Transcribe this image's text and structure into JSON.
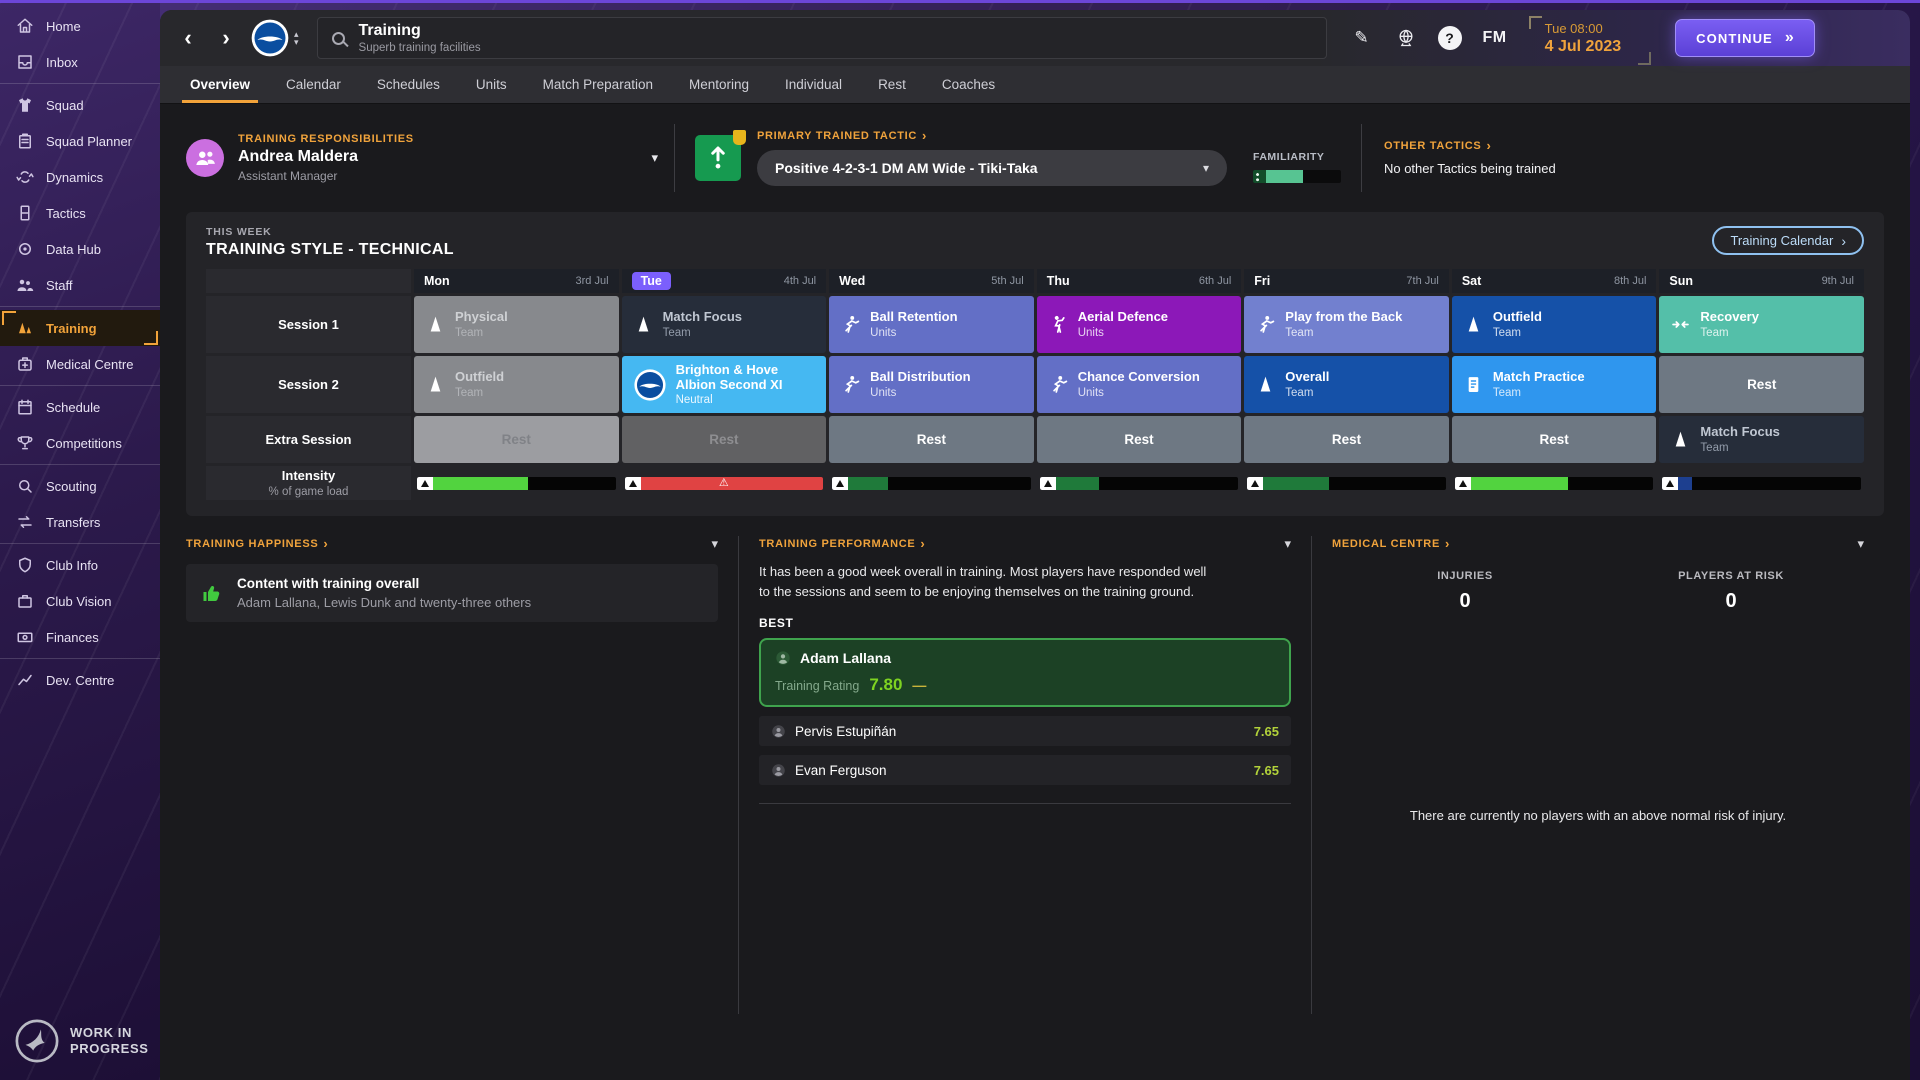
{
  "icons": {
    "back": "‹",
    "forward": "›",
    "link_arrow": "›",
    "chevron_down": "▾",
    "chevron_up": "▴",
    "continue_arrows": "»",
    "warning": "⚠",
    "pencil": "✎",
    "help": "?"
  },
  "sidebar": {
    "items": [
      {
        "label": "Home"
      },
      {
        "label": "Inbox"
      },
      {
        "label": "Squad"
      },
      {
        "label": "Squad Planner"
      },
      {
        "label": "Dynamics"
      },
      {
        "label": "Tactics"
      },
      {
        "label": "Data Hub"
      },
      {
        "label": "Staff"
      },
      {
        "label": "Training"
      },
      {
        "label": "Medical Centre"
      },
      {
        "label": "Schedule"
      },
      {
        "label": "Competitions"
      },
      {
        "label": "Scouting"
      },
      {
        "label": "Transfers"
      },
      {
        "label": "Club Info"
      },
      {
        "label": "Club Vision"
      },
      {
        "label": "Finances"
      },
      {
        "label": "Dev. Centre"
      }
    ],
    "active_item": "Training",
    "footer_line1": "WORK IN",
    "footer_line2": "PROGRESS"
  },
  "topbar": {
    "title": "Training",
    "subtitle": "Superb training facilities",
    "fm_label": "FM",
    "time": "Tue 08:00",
    "date": "4 Jul 2023",
    "continue_label": "CONTINUE"
  },
  "tabs": [
    {
      "label": "Overview"
    },
    {
      "label": "Calendar"
    },
    {
      "label": "Schedules"
    },
    {
      "label": "Units"
    },
    {
      "label": "Match Preparation"
    },
    {
      "label": "Mentoring"
    },
    {
      "label": "Individual"
    },
    {
      "label": "Rest"
    },
    {
      "label": "Coaches"
    }
  ],
  "active_tab": "Overview",
  "responsibilities": {
    "section": "TRAINING RESPONSIBILITIES",
    "name": "Andrea Maldera",
    "role": "Assistant Manager"
  },
  "tactic": {
    "section": "PRIMARY TRAINED TACTIC",
    "value": "Positive 4-2-3-1 DM AM Wide - Tiki-Taka",
    "familiarity_label": "FAMILIARITY",
    "familiarity_pct": 42
  },
  "other_tactics": {
    "section": "OTHER TACTICS",
    "text": "No other Tactics being trained"
  },
  "week": {
    "label": "THIS WEEK",
    "title": "TRAINING STYLE - TECHNICAL",
    "calendar_button": "Training Calendar",
    "row_labels": {
      "s1": "Session 1",
      "s2": "Session 2",
      "extra": "Extra Session",
      "intensity": "Intensity",
      "intensity_sub": "% of game load"
    },
    "days": [
      {
        "name": "Mon",
        "date": "3rd Jul"
      },
      {
        "name": "Tue",
        "date": "4th Jul",
        "today": true
      },
      {
        "name": "Wed",
        "date": "5th Jul"
      },
      {
        "name": "Thu",
        "date": "6th Jul"
      },
      {
        "name": "Fri",
        "date": "7th Jul"
      },
      {
        "name": "Sat",
        "date": "8th Jul"
      },
      {
        "name": "Sun",
        "date": "9th Jul"
      }
    ],
    "session1": [
      {
        "title": "Physical",
        "sub": "Team"
      },
      {
        "title": "Match Focus",
        "sub": "Team"
      },
      {
        "title": "Ball Retention",
        "sub": "Units"
      },
      {
        "title": "Aerial Defence",
        "sub": "Units"
      },
      {
        "title": "Play from the Back",
        "sub": "Team"
      },
      {
        "title": "Outfield",
        "sub": "Team"
      },
      {
        "title": "Recovery",
        "sub": "Team"
      }
    ],
    "session2": [
      {
        "title": "Outfield",
        "sub": "Team"
      },
      {
        "title": "Brighton & Hove Albion Second XI",
        "sub": "Neutral"
      },
      {
        "title": "Ball Distribution",
        "sub": "Units"
      },
      {
        "title": "Chance Conversion",
        "sub": "Units"
      },
      {
        "title": "Overall",
        "sub": "Team"
      },
      {
        "title": "Match Practice",
        "sub": "Team"
      },
      {
        "title": "Rest"
      }
    ],
    "extra": [
      {
        "title": "Rest"
      },
      {
        "title": "Rest"
      },
      {
        "title": "Rest"
      },
      {
        "title": "Rest"
      },
      {
        "title": "Rest"
      },
      {
        "title": "Rest"
      },
      {
        "title": "Match Focus",
        "sub": "Team"
      }
    ],
    "intensity_bars": [
      {
        "pct": 48,
        "color": "#52d33f",
        "warning": false
      },
      {
        "pct": 93,
        "color": "#e04343",
        "warning": true
      },
      {
        "pct": 20,
        "color": "#1f7a3a",
        "warning": false
      },
      {
        "pct": 22,
        "color": "#1f7a3a",
        "warning": false
      },
      {
        "pct": 33,
        "color": "#1f7a3a",
        "warning": false
      },
      {
        "pct": 49,
        "color": "#52d33f",
        "warning": false
      },
      {
        "pct": 7,
        "color": "#1d3f8f",
        "warning": false
      }
    ]
  },
  "happiness": {
    "section": "TRAINING HAPPINESS",
    "item_title": "Content with training overall",
    "item_desc": "Adam Lallana, Lewis Dunk and twenty-three others"
  },
  "performance": {
    "section": "TRAINING PERFORMANCE",
    "summary": "It has been a good week overall in training. Most players have responded well to the sessions and seem to be enjoying themselves on the training ground.",
    "best_label": "BEST",
    "best": {
      "name": "Adam Lallana",
      "rating_label": "Training Rating",
      "rating": "7.80",
      "trend": "—"
    },
    "others": [
      {
        "name": "Pervis Estupiñán",
        "rating": "7.65"
      },
      {
        "name": "Evan Ferguson",
        "rating": "7.65"
      }
    ]
  },
  "medical": {
    "section": "MEDICAL CENTRE",
    "injuries_label": "INJURIES",
    "injuries_value": "0",
    "risk_label": "PLAYERS AT RISK",
    "risk_value": "0",
    "note": "There are currently no players with an above normal risk of injury."
  },
  "colors": {
    "accent_orange": "#f0a33c",
    "continue_purple": "#6a4fe0",
    "today_badge": "#7b5ffc",
    "cell_past": "#87898d",
    "cell_navy": "#262d3a",
    "cell_slate_blue": "#636fc6",
    "cell_purple": "#8c18b8",
    "cell_slate_blue_light": "#7280cf",
    "cell_dark_blue": "#1551a8",
    "cell_bright_blue": "#2f96ee",
    "cell_teal": "#54bfa9",
    "cell_match_cyan": "#45b8f2",
    "cell_rest_slate": "#6e7883",
    "rating_green": "#9ccc2e",
    "best_green_border": "#3fa34d"
  }
}
